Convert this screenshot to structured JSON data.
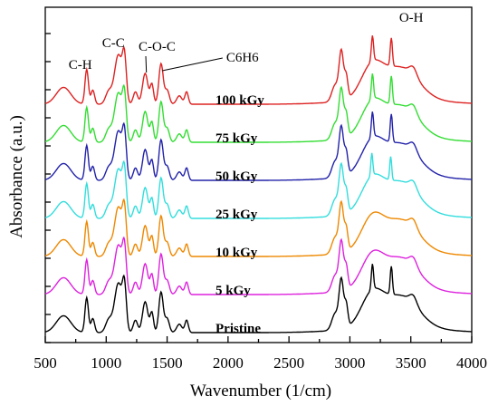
{
  "chart_data": {
    "type": "line",
    "title": "",
    "xlabel": "Wavenumber (1/cm)",
    "ylabel": "Absorbance (a.u.)",
    "xlim": [
      500,
      4000
    ],
    "x_ticks": [
      "500",
      "1000",
      "1500",
      "2000",
      "2500",
      "3000",
      "3500",
      "4000"
    ],
    "y_ticks_labeled": false,
    "grid": false,
    "legend": "none (series labeled inline)",
    "annotations": [
      {
        "text": "C-H",
        "x": 840
      },
      {
        "text": "C-C",
        "x": 1100
      },
      {
        "text": "C-O-C",
        "x": 1310
      },
      {
        "text": "C6H6",
        "x": 1450
      },
      {
        "text": "O-H",
        "x": 3330
      }
    ],
    "series": [
      {
        "name": "Pristine",
        "color": "#000000",
        "offset": 0
      },
      {
        "name": "5 kGy",
        "color": "#dd22dd",
        "offset": 1
      },
      {
        "name": "10 kGy",
        "color": "#ee8800",
        "offset": 2
      },
      {
        "name": "25 kGy",
        "color": "#33dddd",
        "offset": 3
      },
      {
        "name": "50 kGy",
        "color": "#2222aa",
        "offset": 4
      },
      {
        "name": "75 kGy",
        "color": "#33dd33",
        "offset": 5
      },
      {
        "name": "100 kGy",
        "color": "#dd2222",
        "offset": 6
      }
    ]
  }
}
